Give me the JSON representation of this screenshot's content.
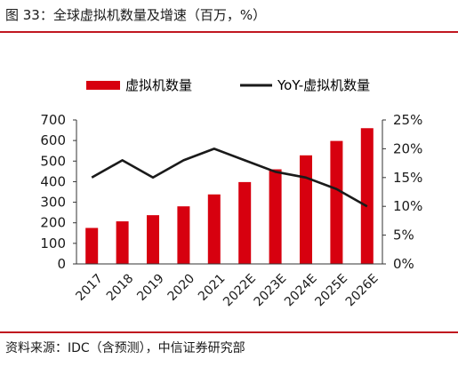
{
  "title": "图 33：全球虚拟机数量及增速（百万，%）",
  "source": "资料来源：IDC（含预测），中信证券研究部",
  "colors": {
    "bar": "#d7000f",
    "line": "#1a1a1a",
    "accent_rule": "#c0171f"
  },
  "chart_data": {
    "type": "bar",
    "categories": [
      "2017",
      "2018",
      "2019",
      "2020",
      "2021",
      "2022E",
      "2023E",
      "2024E",
      "2025E",
      "2026E"
    ],
    "series": [
      {
        "name": "虚拟机数量",
        "type": "bar",
        "axis": "left",
        "values": [
          175,
          207,
          237,
          280,
          338,
          398,
          460,
          528,
          598,
          660
        ]
      },
      {
        "name": "YoY-虚拟机数量",
        "type": "line",
        "axis": "right",
        "values": [
          15,
          18,
          15,
          18,
          20,
          18,
          16,
          15,
          13,
          10
        ]
      }
    ],
    "y_left": {
      "min": 0,
      "max": 700,
      "ticks": [
        0,
        100,
        200,
        300,
        400,
        500,
        600,
        700
      ]
    },
    "y_right": {
      "min": 0,
      "max": 25,
      "ticks": [
        "0%",
        "5%",
        "10%",
        "15%",
        "20%",
        "25%"
      ]
    },
    "legend_position": "top",
    "grid": false
  }
}
